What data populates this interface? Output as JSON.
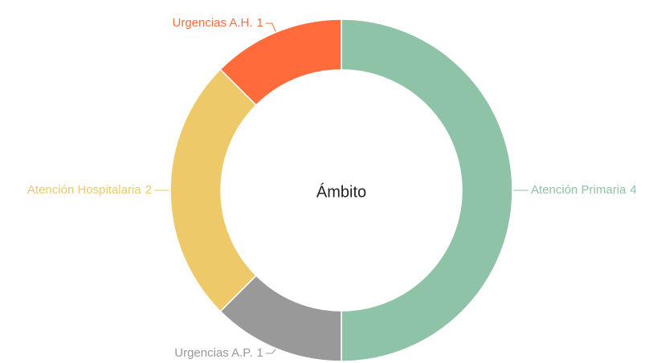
{
  "chart_data": {
    "type": "donut",
    "title": "Ámbito",
    "categories": [
      "Atención Primaria",
      "Urgencias A.P.",
      "Atención Hospitalaria",
      "Urgencias A.H."
    ],
    "values": [
      4,
      1,
      2,
      1
    ],
    "colors": [
      "#8fc3a7",
      "#999999",
      "#eec96a",
      "#ff6b3b"
    ]
  }
}
